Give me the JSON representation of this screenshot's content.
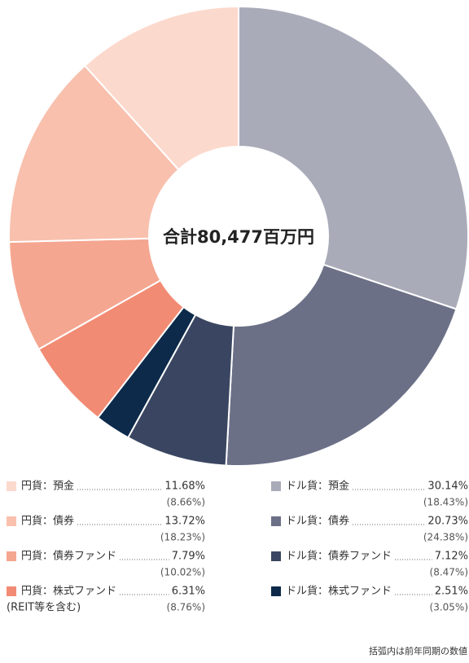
{
  "chart_data": {
    "type": "donut",
    "center_label": "合計80,477百万円",
    "categories": [
      "ドル貨：預金",
      "ドル貨：債券",
      "ドル貨：債券ファンド",
      "ドル貨：株式ファンド",
      "円貨：株式ファンド",
      "円貨：債券ファンド",
      "円貨：債券",
      "円貨：預金"
    ],
    "values": [
      30.14,
      20.73,
      7.12,
      2.51,
      6.31,
      7.79,
      13.72,
      11.68
    ],
    "value_labels": [
      "30.14%",
      "20.73%",
      "7.12%",
      "2.51%",
      "6.31%",
      "7.79%",
      "13.72%",
      "11.68%"
    ],
    "prior_values": [
      18.43,
      24.38,
      8.47,
      3.05,
      8.76,
      10.02,
      18.23,
      8.66
    ],
    "prior_value_labels": [
      "(18.43%)",
      "(24.38%)",
      "(8.47%)",
      "(3.05%)",
      "(8.76%)",
      "(10.02%)",
      "(18.23%)",
      "(8.66%)"
    ],
    "colors": [
      "#a9abb9",
      "#6b7087",
      "#3a4661",
      "#0d2a4a",
      "#f28b74",
      "#f5a690",
      "#f8c0ad",
      "#fcd9cd"
    ],
    "legend_note": "(REIT等を含む)",
    "footnote": "括弧内は前年同期の数値"
  }
}
